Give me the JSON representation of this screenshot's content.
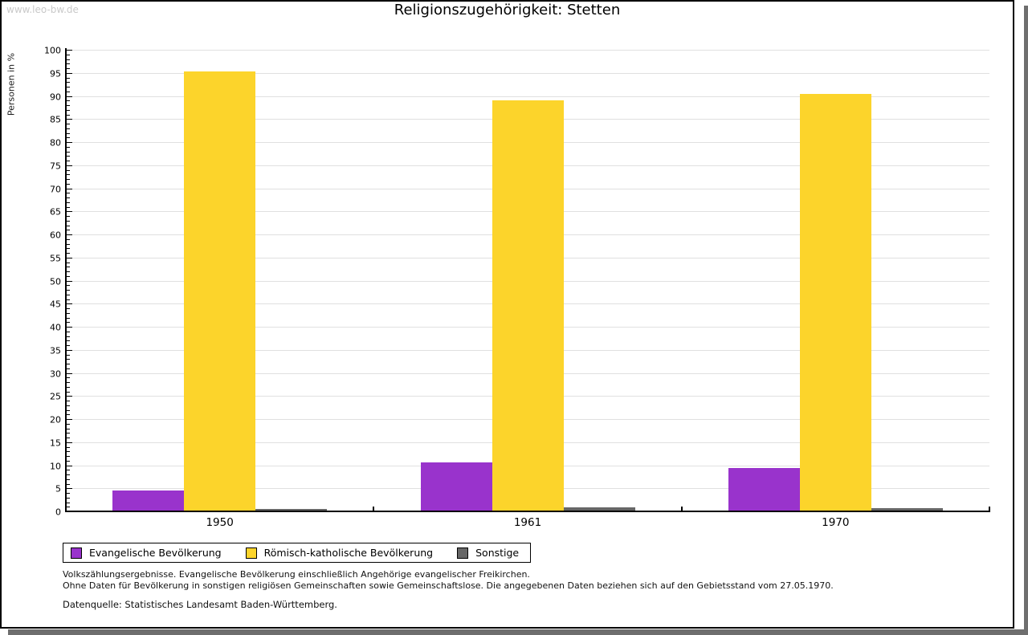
{
  "watermark": "www.leo-bw.de",
  "title": "Religionszugehörigkeit: Stetten",
  "chart_data": {
    "type": "bar",
    "title": "Religionszugehörigkeit: Stetten",
    "categories": [
      "1950",
      "1961",
      "1970"
    ],
    "series": [
      {
        "id": "evangelisch",
        "name": "Evangelische Bevölkerung",
        "color": "#9933cc",
        "values": [
          4.4,
          10.4,
          9.3
        ]
      },
      {
        "id": "katholisch",
        "name": "Römisch-katholische Bevölkerung",
        "color": "#fcd42b",
        "values": [
          95.2,
          88.9,
          90.2
        ]
      },
      {
        "id": "sonstige",
        "name": "Sonstige",
        "color": "#666666",
        "values": [
          0.4,
          0.7,
          0.5
        ]
      }
    ],
    "xlabel": "",
    "ylabel": "Personen in %",
    "ylim": [
      0,
      100
    ],
    "ytick_step": 5,
    "y_minor_step": 1,
    "grid": true,
    "legend_position": "bottom-left"
  },
  "footer": {
    "line1": "Volkszählungsergebnisse. Evangelische Bevölkerung einschließlich Angehörige evangelischer Freikirchen.",
    "line2": "Ohne Daten für Bevölkerung in sonstigen religiösen Gemeinschaften sowie Gemeinschaftslose. Die angegebenen Daten beziehen sich auf den Gebietsstand vom 27.05.1970.",
    "source": "Datenquelle: Statistisches Landesamt Baden-Württemberg."
  }
}
